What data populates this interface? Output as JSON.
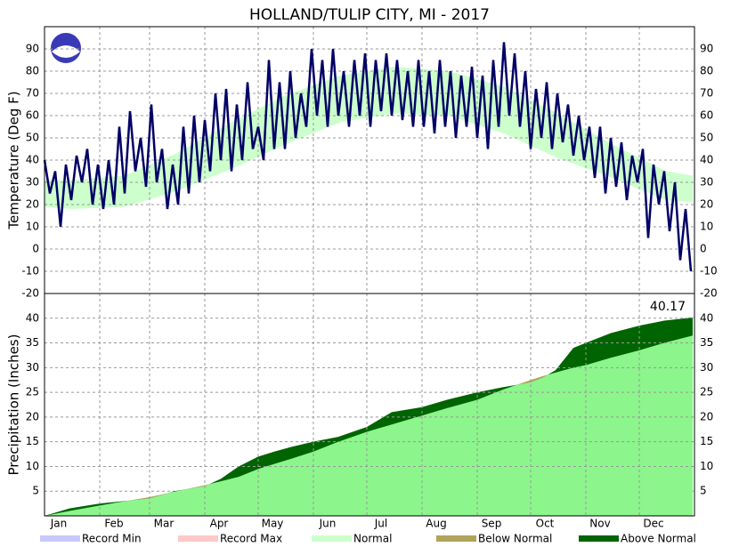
{
  "chart_data": [
    {
      "type": "line",
      "title": "HOLLAND/TULIP CITY, MI - 2017",
      "y_label": "Temperature (Deg F)",
      "x": [
        1,
        4,
        7,
        10,
        13,
        16,
        19,
        22,
        25,
        28,
        31,
        34,
        37,
        40,
        43,
        46,
        49,
        52,
        55,
        58,
        61,
        64,
        67,
        70,
        73,
        76,
        79,
        82,
        85,
        88,
        91,
        94,
        97,
        100,
        103,
        106,
        109,
        112,
        115,
        118,
        121,
        124,
        127,
        130,
        133,
        136,
        139,
        142,
        145,
        148,
        151,
        154,
        157,
        160,
        163,
        166,
        169,
        172,
        175,
        178,
        181,
        184,
        187,
        190,
        193,
        196,
        199,
        202,
        205,
        208,
        211,
        214,
        217,
        220,
        223,
        226,
        229,
        232,
        235,
        238,
        241,
        244,
        247,
        250,
        253,
        256,
        259,
        262,
        265,
        268,
        271,
        274,
        277,
        280,
        283,
        286,
        289,
        292,
        295,
        298,
        301,
        304,
        307,
        310,
        313,
        316,
        319,
        322,
        325,
        328,
        331,
        334,
        337,
        340,
        343,
        346,
        349,
        352,
        355,
        358,
        361,
        364
      ],
      "values": [
        40,
        25,
        35,
        10,
        38,
        22,
        42,
        30,
        45,
        20,
        38,
        18,
        40,
        20,
        55,
        25,
        62,
        35,
        50,
        28,
        65,
        30,
        45,
        18,
        38,
        20,
        55,
        25,
        60,
        30,
        58,
        35,
        70,
        40,
        72,
        35,
        65,
        40,
        75,
        45,
        55,
        40,
        85,
        45,
        75,
        45,
        80,
        50,
        70,
        55,
        90,
        60,
        85,
        55,
        90,
        60,
        80,
        55,
        85,
        60,
        88,
        55,
        85,
        62,
        88,
        60,
        85,
        58,
        80,
        55,
        85,
        55,
        80,
        52,
        85,
        55,
        80,
        50,
        78,
        55,
        82,
        50,
        78,
        45,
        85,
        55,
        93,
        60,
        88,
        55,
        80,
        45,
        72,
        50,
        75,
        45,
        70,
        48,
        65,
        42,
        60,
        40,
        55,
        32,
        55,
        25,
        50,
        28,
        48,
        22,
        42,
        30,
        45,
        5,
        38,
        20,
        35,
        8,
        30,
        -5,
        18,
        -10
      ],
      "color": "#000066",
      "normal": {
        "x": [
          1,
          16,
          46,
          75,
          106,
          136,
          167,
          197,
          228,
          259,
          289,
          320,
          350,
          365
        ],
        "low": [
          19,
          18,
          19,
          26,
          36,
          47,
          57,
          61,
          60,
          52,
          41,
          32,
          22,
          21
        ],
        "high": [
          31,
          31,
          33,
          43,
          57,
          69,
          78,
          82,
          80,
          73,
          61,
          47,
          35,
          33
        ],
        "color": "#ccffcc"
      },
      "xlim": [
        1,
        366
      ],
      "ylim": [
        -20,
        100
      ],
      "yticks": [
        -20,
        -10,
        0,
        10,
        20,
        30,
        40,
        50,
        60,
        70,
        80,
        90
      ],
      "grid": true
    },
    {
      "type": "area",
      "y_label": "Precipitation (Inches)",
      "x": [
        1,
        15,
        32,
        60,
        74,
        91,
        100,
        110,
        121,
        130,
        140,
        152,
        166,
        182,
        196,
        213,
        227,
        244,
        258,
        274,
        281,
        288,
        298,
        305,
        319,
        335,
        349,
        365
      ],
      "observed": [
        0,
        1.5,
        2.5,
        3.5,
        5,
        6,
        7.5,
        10,
        12,
        13,
        14,
        15,
        16,
        18,
        21,
        22,
        23.5,
        25,
        26,
        27,
        28,
        29.5,
        34,
        35,
        37,
        38.5,
        39.5,
        40.17
      ],
      "normal": [
        0,
        1,
        2.1,
        3.8,
        4.9,
        6.2,
        7,
        7.9,
        9.5,
        10.5,
        11.6,
        13,
        15,
        17,
        18.5,
        20.3,
        21.8,
        23.5,
        25.5,
        27.5,
        28.3,
        29,
        30,
        30.5,
        32,
        33.5,
        35,
        36.5
      ],
      "annotation": "40.17",
      "normal_color": "#8cf58c",
      "above_color": "#006400",
      "below_color": "#b0a45a",
      "xlim": [
        1,
        366
      ],
      "xticks": [
        {
          "value": 1,
          "label": "Jan"
        },
        {
          "value": 32,
          "label": "Feb"
        },
        {
          "value": 60,
          "label": "Mar"
        },
        {
          "value": 91,
          "label": "Apr"
        },
        {
          "value": 121,
          "label": "May"
        },
        {
          "value": 152,
          "label": "Jun"
        },
        {
          "value": 182,
          "label": "Jul"
        },
        {
          "value": 213,
          "label": "Aug"
        },
        {
          "value": 244,
          "label": "Sep"
        },
        {
          "value": 274,
          "label": "Oct"
        },
        {
          "value": 305,
          "label": "Nov"
        },
        {
          "value": 335,
          "label": "Dec"
        }
      ],
      "ylim": [
        0,
        45
      ],
      "yticks": [
        5,
        10,
        15,
        20,
        25,
        30,
        35,
        40
      ],
      "grid": true
    }
  ],
  "legend": [
    {
      "name": "Record Min",
      "color": "#c8c8ff"
    },
    {
      "name": "Record Max",
      "color": "#ffc8c8"
    },
    {
      "name": "Normal",
      "color": "#ccffcc"
    },
    {
      "name": "Below Normal",
      "color": "#b0a45a"
    },
    {
      "name": "Above Normal",
      "color": "#006400"
    }
  ]
}
